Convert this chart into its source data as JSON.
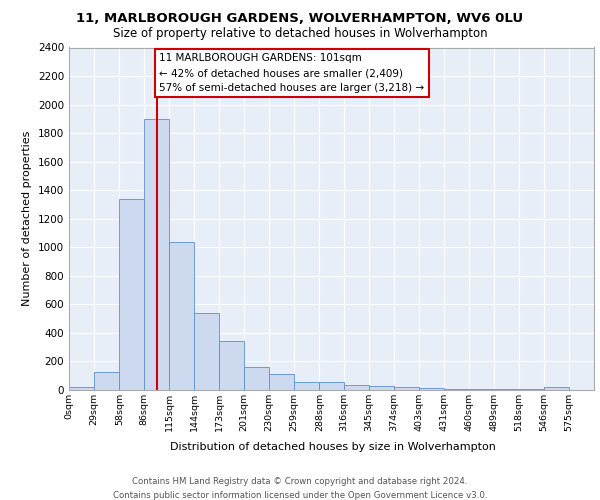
{
  "title1": "11, MARLBOROUGH GARDENS, WOLVERHAMPTON, WV6 0LU",
  "title2": "Size of property relative to detached houses in Wolverhampton",
  "xlabel": "Distribution of detached houses by size in Wolverhampton",
  "ylabel": "Number of detached properties",
  "bar_values": [
    20,
    125,
    1340,
    1900,
    1040,
    540,
    340,
    160,
    110,
    55,
    55,
    35,
    30,
    20,
    15,
    5,
    5,
    5,
    5,
    20
  ],
  "bin_labels": [
    "0sqm",
    "29sqm",
    "58sqm",
    "86sqm",
    "115sqm",
    "144sqm",
    "173sqm",
    "201sqm",
    "230sqm",
    "259sqm",
    "288sqm",
    "316sqm",
    "345sqm",
    "374sqm",
    "403sqm",
    "431sqm",
    "460sqm",
    "489sqm",
    "518sqm",
    "546sqm",
    "575sqm"
  ],
  "bin_edges": [
    0,
    29,
    58,
    86,
    115,
    144,
    173,
    201,
    230,
    259,
    288,
    316,
    345,
    374,
    403,
    431,
    460,
    489,
    518,
    546,
    575
  ],
  "property_size": 101,
  "red_line_x": 101,
  "annotation_title": "11 MARLBOROUGH GARDENS: 101sqm",
  "annotation_line1": "← 42% of detached houses are smaller (2,409)",
  "annotation_line2": "57% of semi-detached houses are larger (3,218) →",
  "bar_color": "#ccd9ee",
  "bar_edge_color": "#5b8fd4",
  "red_line_color": "#cc0000",
  "annotation_box_color": "#ffffff",
  "annotation_box_edge": "#cc0000",
  "bg_color": "#e8eef8",
  "grid_color": "#ffffff",
  "ylim": [
    0,
    2400
  ],
  "yticks": [
    0,
    200,
    400,
    600,
    800,
    1000,
    1200,
    1400,
    1600,
    1800,
    2000,
    2200,
    2400
  ],
  "footer1": "Contains HM Land Registry data © Crown copyright and database right 2024.",
  "footer2": "Contains public sector information licensed under the Open Government Licence v3.0."
}
